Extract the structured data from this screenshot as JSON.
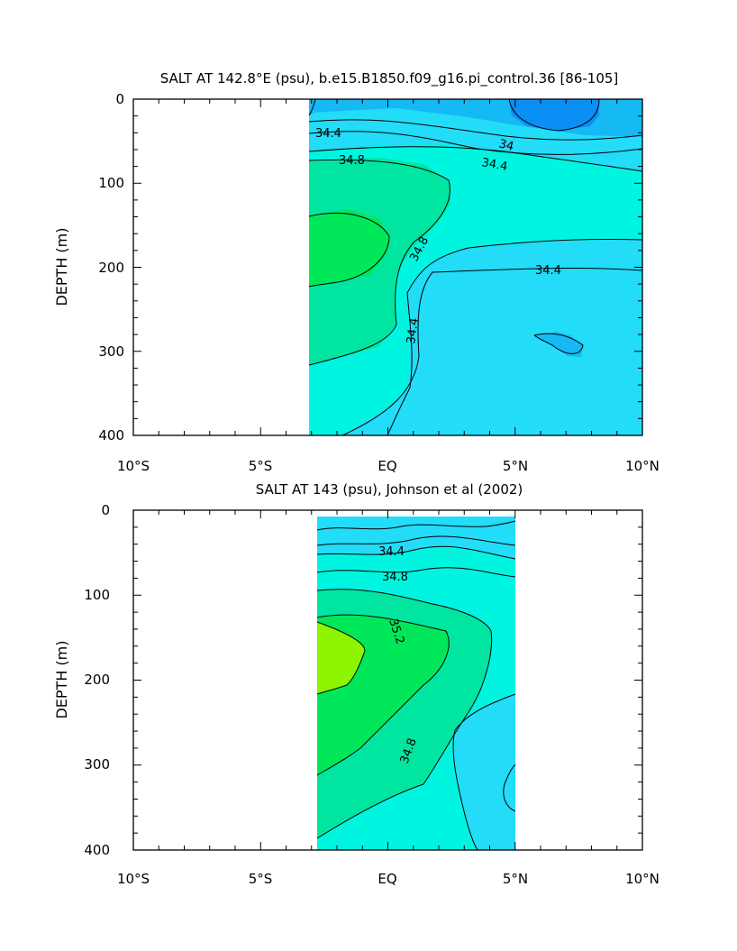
{
  "chart_data": [
    {
      "type": "contour",
      "title": "SALT AT 142.8°E (psu), b.e15.B1850.f09_g16.pi_control.36 [86-105]",
      "ylabel": "DEPTH (m)",
      "xlabel": "",
      "xlim": [
        -10,
        10
      ],
      "ylim": [
        0,
        400
      ],
      "y_inverted": true,
      "xtick_labels": [
        "10°S",
        "5°S",
        "EQ",
        "5°N",
        "10°N"
      ],
      "ytick_labels": [
        "0",
        "100",
        "200",
        "300",
        "400"
      ],
      "data_extent_x": [
        -3,
        10
      ],
      "contour_labels": [
        "34.4",
        "34",
        "34.4",
        "34.8",
        "34.8",
        "34.4",
        "34.4"
      ],
      "colors": {
        "fresh": "#0a8ff5",
        "mid_low": "#22dcf8",
        "mid": "#00f5e0",
        "high": "#00e6a0",
        "max": "#00e85a"
      }
    },
    {
      "type": "contour",
      "title": "SALT AT 143 (psu), Johnson et al (2002)",
      "ylabel": "DEPTH (m)",
      "xlabel": "",
      "xlim": [
        -10,
        10
      ],
      "ylim": [
        0,
        400
      ],
      "y_inverted": true,
      "xtick_labels": [
        "10°S",
        "5°S",
        "EQ",
        "5°N",
        "10°N"
      ],
      "ytick_labels": [
        "0",
        "100",
        "200",
        "300",
        "400"
      ],
      "data_extent_x": [
        -2.8,
        5
      ],
      "contour_labels": [
        "34.4",
        "34.8",
        "35.2",
        "34.8"
      ],
      "colors": {
        "low": "#22dcf8",
        "mid": "#00f5e0",
        "high": "#00e6a0",
        "higher": "#00e85a",
        "max": "#8ef500"
      }
    }
  ]
}
